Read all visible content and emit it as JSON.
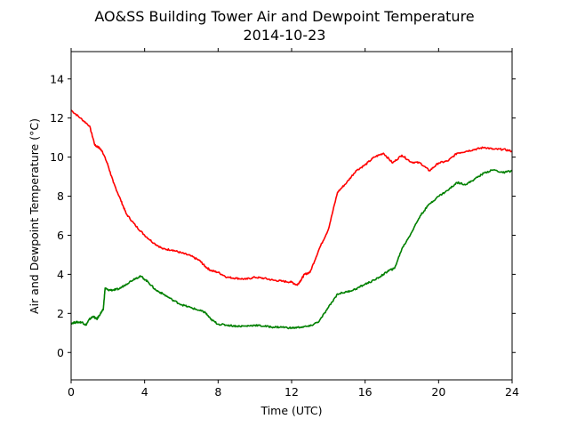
{
  "chart_data": {
    "type": "line",
    "title": "AO&SS Building Tower Air and Dewpoint Temperature",
    "subtitle": "2014-10-23",
    "xlabel": "Time (UTC)",
    "ylabel": "Air and Dewpoint Temperature (°C)",
    "xlim": [
      0,
      24
    ],
    "ylim": [
      -1.4,
      15.4
    ],
    "xticks": [
      0,
      4,
      8,
      12,
      16,
      20,
      24
    ],
    "yticks": [
      0,
      2,
      4,
      6,
      8,
      10,
      12,
      14
    ],
    "grid": false,
    "legend": "none",
    "series": [
      {
        "color": "#ff0000",
        "x": [
          0,
          0.5,
          1,
          1.3,
          1.5,
          1.7,
          2,
          2.3,
          2.7,
          3,
          3.5,
          4,
          4.5,
          5,
          5.5,
          6,
          6.5,
          7,
          7.3,
          7.6,
          8,
          8.5,
          9,
          9.5,
          10,
          10.5,
          11,
          11.5,
          12,
          12.3,
          12.5,
          12.7,
          13,
          13.5,
          14,
          14.5,
          15,
          15.5,
          16,
          16.5,
          17,
          17.5,
          18,
          18.5,
          19,
          19.5,
          20,
          20.5,
          21,
          21.5,
          22,
          22.5,
          23,
          23.5,
          24
        ],
        "y": [
          12.4,
          12.0,
          11.6,
          10.6,
          10.5,
          10.3,
          9.6,
          8.7,
          7.8,
          7.1,
          6.5,
          6.0,
          5.6,
          5.3,
          5.25,
          5.1,
          4.95,
          4.7,
          4.4,
          4.2,
          4.1,
          3.85,
          3.8,
          3.75,
          3.85,
          3.8,
          3.7,
          3.65,
          3.6,
          3.45,
          3.7,
          4.0,
          4.1,
          5.3,
          6.3,
          8.2,
          8.7,
          9.3,
          9.6,
          10.0,
          10.2,
          9.7,
          10.1,
          9.75,
          9.7,
          9.3,
          9.7,
          9.8,
          10.2,
          10.3,
          10.4,
          10.5,
          10.4,
          10.4,
          10.3
        ]
      },
      {
        "color": "#008000",
        "x": [
          0,
          0.3,
          0.6,
          0.8,
          1,
          1.2,
          1.4,
          1.6,
          1.75,
          1.85,
          2,
          2.3,
          2.6,
          3,
          3.5,
          3.8,
          4.2,
          4.6,
          5,
          5.5,
          6,
          6.5,
          7,
          7.3,
          7.6,
          8,
          8.5,
          9,
          9.5,
          10,
          10.5,
          11,
          11.5,
          12,
          12.5,
          13,
          13.5,
          14,
          14.5,
          15,
          15.5,
          16,
          16.5,
          17,
          17.3,
          17.6,
          18,
          18.5,
          19,
          19.5,
          20,
          20.5,
          21,
          21.5,
          22,
          22.5,
          23,
          23.5,
          24
        ],
        "y": [
          1.5,
          1.55,
          1.55,
          1.4,
          1.7,
          1.85,
          1.7,
          2.0,
          2.2,
          3.3,
          3.2,
          3.2,
          3.25,
          3.5,
          3.8,
          3.9,
          3.6,
          3.2,
          3.0,
          2.7,
          2.45,
          2.3,
          2.15,
          2.05,
          1.7,
          1.45,
          1.4,
          1.35,
          1.35,
          1.4,
          1.35,
          1.3,
          1.3,
          1.25,
          1.3,
          1.35,
          1.6,
          2.3,
          3.0,
          3.1,
          3.25,
          3.5,
          3.7,
          4.0,
          4.2,
          4.3,
          5.3,
          6.1,
          7.0,
          7.6,
          8.0,
          8.3,
          8.7,
          8.6,
          8.9,
          9.2,
          9.35,
          9.2,
          9.3
        ]
      }
    ]
  }
}
